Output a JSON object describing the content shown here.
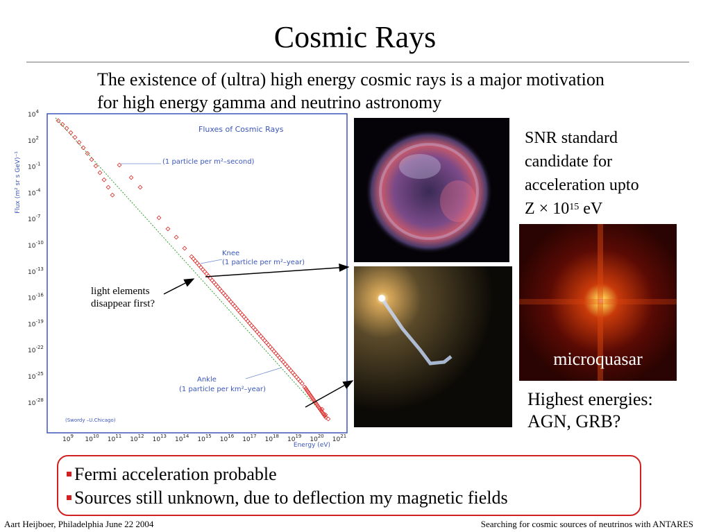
{
  "title": "Cosmic Rays",
  "intro": "The existence of (ultra) high energy cosmic rays is a major motivation for high energy gamma and neutrino astronomy",
  "plot": {
    "title": "Fluxes of Cosmic Rays",
    "ylabel": "Flux (m² sr s GeV)⁻¹",
    "xlabel": "Energy (eV)",
    "credit": "(Swordy –U.Chicago)",
    "ann_second": "(1 particle per m²–second)",
    "knee": "Knee",
    "ann_year": "(1 particle per m²–year)",
    "ankle": "Ankle",
    "ann_km": "(1 particle per km²–year)",
    "ytick_base": "10",
    "yticks": [
      "4",
      "2",
      "-1",
      "-4",
      "-7",
      "-10",
      "-13",
      "-16",
      "-19",
      "-22",
      "-25",
      "-28"
    ],
    "xtick_base": "10",
    "xticks": [
      "9",
      "10",
      "11",
      "12",
      "13",
      "14",
      "15",
      "16",
      "17",
      "18",
      "19",
      "20",
      "21"
    ],
    "colors": {
      "frame": "#3a55b8",
      "title": "#3a55b8",
      "points": "#e02020",
      "fit": "#2fa02f"
    }
  },
  "snr_text": {
    "line1": "SNR standard",
    "line2": "candidate for",
    "line3": "acceleration upto",
    "line4_pre": "Z × 10",
    "line4_sup": "15",
    "line4_post": " eV"
  },
  "microquasar_label": "microquasar",
  "highest_energies": {
    "line1": "Highest energies:",
    "line2": "AGN, GRB?"
  },
  "light_elements": {
    "line1": "light elements",
    "line2": "disappear first?"
  },
  "bullets": [
    "Fermi acceleration probable",
    "Sources still unknown, due to deflection my magnetic fields"
  ],
  "footer": {
    "left": "Aart Heijboer, Philadelphia June 22 2004",
    "right": "Searching for cosmic sources of neutrinos with ANTARES"
  }
}
